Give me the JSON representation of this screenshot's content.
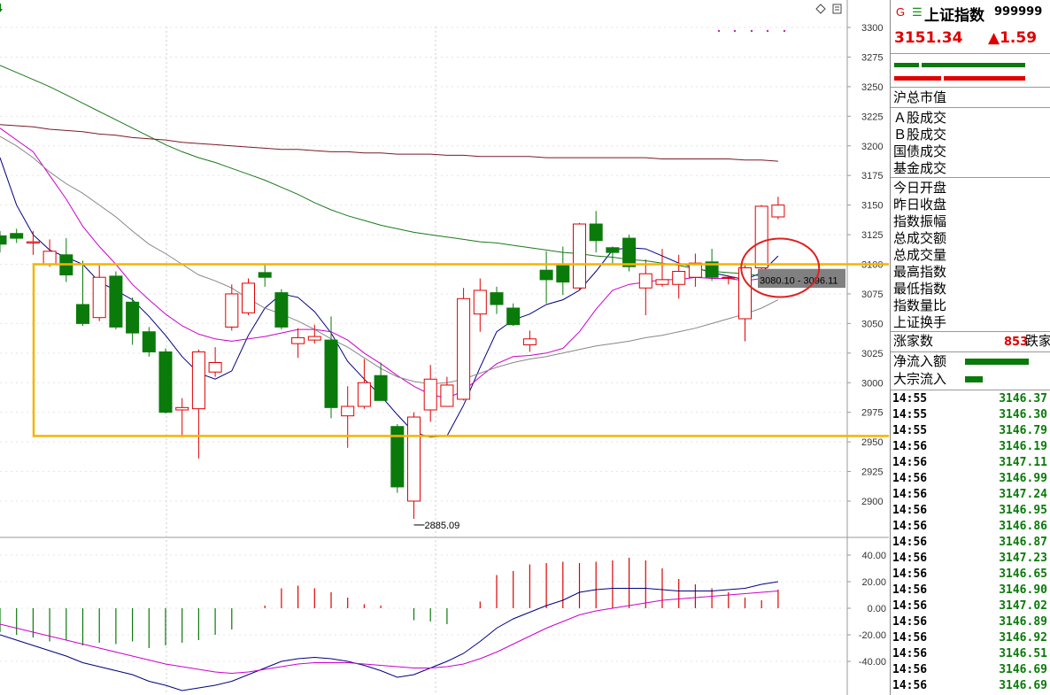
{
  "chart_data": [
    {
      "type": "candlestick",
      "ylim": [
        2880,
        3305
      ],
      "y_ticks": [
        "3300",
        "3275",
        "3250",
        "3225",
        "3200",
        "3175",
        "3150",
        "3125",
        "3100",
        "3075",
        "3050",
        "3025",
        "3000",
        "2975",
        "2950",
        "2925",
        "2900"
      ],
      "candles": [
        {
          "o": 3124,
          "c": 3117,
          "h": 3128,
          "l": 3110
        },
        {
          "o": 3126,
          "c": 3122,
          "h": 3130,
          "l": 3118
        },
        {
          "o": 3118,
          "c": 3119,
          "h": 3128,
          "l": 3108
        },
        {
          "o": 3100,
          "c": 3111,
          "h": 3121,
          "l": 3098
        },
        {
          "o": 3108,
          "c": 3091,
          "h": 3122,
          "l": 3085
        },
        {
          "o": 3066,
          "c": 3050,
          "h": 3103,
          "l": 3048
        },
        {
          "o": 3055,
          "c": 3089,
          "h": 3099,
          "l": 3052
        },
        {
          "o": 3090,
          "c": 3047,
          "h": 3094,
          "l": 3045
        },
        {
          "o": 3068,
          "c": 3042,
          "h": 3072,
          "l": 3032
        },
        {
          "o": 3043,
          "c": 3026,
          "h": 3047,
          "l": 3022
        },
        {
          "o": 3026,
          "c": 2975,
          "h": 3029,
          "l": 2974
        },
        {
          "o": 2977,
          "c": 2979,
          "h": 2987,
          "l": 2955
        },
        {
          "o": 2978,
          "c": 3026,
          "h": 3028,
          "l": 2936
        },
        {
          "o": 3009,
          "c": 3017,
          "h": 3030,
          "l": 3005
        },
        {
          "o": 3047,
          "c": 3075,
          "h": 3083,
          "l": 3044
        },
        {
          "o": 3059,
          "c": 3084,
          "h": 3088,
          "l": 3057
        },
        {
          "o": 3093,
          "c": 3089,
          "h": 3100,
          "l": 3081
        },
        {
          "o": 3076,
          "c": 3047,
          "h": 3079,
          "l": 3045
        },
        {
          "o": 3033,
          "c": 3038,
          "h": 3046,
          "l": 3021
        },
        {
          "o": 3036,
          "c": 3039,
          "h": 3049,
          "l": 3033
        },
        {
          "o": 3036,
          "c": 2979,
          "h": 3056,
          "l": 2970
        },
        {
          "o": 2972,
          "c": 2980,
          "h": 2997,
          "l": 2945
        },
        {
          "o": 2980,
          "c": 3000,
          "h": 3020,
          "l": 2978
        },
        {
          "o": 3006,
          "c": 2985,
          "h": 3017,
          "l": 2985
        },
        {
          "o": 2963,
          "c": 2912,
          "h": 2965,
          "l": 2907
        },
        {
          "o": 2900,
          "c": 2971,
          "h": 2975,
          "l": 2885.09
        },
        {
          "o": 2977,
          "c": 3003,
          "h": 3015,
          "l": 2967
        },
        {
          "o": 2980,
          "c": 2998,
          "h": 3005,
          "l": 2980
        },
        {
          "o": 2986,
          "c": 3071,
          "h": 3080,
          "l": 2985
        },
        {
          "o": 3058,
          "c": 3078,
          "h": 3088,
          "l": 3043
        },
        {
          "o": 3076,
          "c": 3066,
          "h": 3081,
          "l": 3058
        },
        {
          "o": 3063,
          "c": 3049,
          "h": 3067,
          "l": 3048
        },
        {
          "o": 3032,
          "c": 3037,
          "h": 3044,
          "l": 3026
        },
        {
          "o": 3095,
          "c": 3087,
          "h": 3111,
          "l": 3067
        },
        {
          "o": 3100,
          "c": 3085,
          "h": 3115,
          "l": 3074
        },
        {
          "o": 3080,
          "c": 3134,
          "h": 3135,
          "l": 3078
        },
        {
          "o": 3134,
          "c": 3120,
          "h": 3145,
          "l": 3110
        },
        {
          "o": 3114,
          "c": 3110,
          "h": 3115,
          "l": 3100
        },
        {
          "o": 3122,
          "c": 3098,
          "h": 3125,
          "l": 3094
        },
        {
          "o": 3080,
          "c": 3092,
          "h": 3104,
          "l": 3057
        },
        {
          "o": 3083,
          "c": 3087,
          "h": 3113,
          "l": 3081
        },
        {
          "o": 3083,
          "c": 3094,
          "h": 3108,
          "l": 3071
        },
        {
          "o": 3089,
          "c": 3101,
          "h": 3109,
          "l": 3081
        },
        {
          "o": 3102,
          "c": 3089,
          "h": 3113,
          "l": 3086
        },
        {
          "o": 3089,
          "c": 3089,
          "h": 3090,
          "l": 3083
        },
        {
          "o": 3054,
          "c": 3097,
          "h": 3101,
          "l": 3035
        },
        {
          "o": 3097,
          "c": 3149,
          "h": 3150,
          "l": 3096
        },
        {
          "o": 3140,
          "c": 3150,
          "h": 3157,
          "l": 3138
        }
      ],
      "candle_colors": {
        "up": "#e00000",
        "down": "#0a7a0a"
      },
      "moving_averages": [
        {
          "color": "#000080",
          "values": [
            3190,
            3150,
            3125,
            3112,
            3106,
            3100,
            3085,
            3078,
            3070,
            3056,
            3040,
            3022,
            3008,
            3003,
            3010,
            3040,
            3063,
            3075,
            3072,
            3060,
            3042,
            3018,
            3003,
            2989,
            2973,
            2958,
            2954,
            2955,
            2981,
            3013,
            3043,
            3053,
            3058,
            3066,
            3070,
            3078,
            3094,
            3112,
            3114,
            3113,
            3107,
            3101,
            3097,
            3093,
            3090,
            3087,
            3093,
            3107
          ]
        },
        {
          "color": "#cc00cc",
          "values": [
            3215,
            3205,
            3195,
            3175,
            3155,
            3132,
            3115,
            3100,
            3083,
            3070,
            3058,
            3048,
            3041,
            3037,
            3035,
            3037,
            3039,
            3042,
            3045,
            3045,
            3043,
            3036,
            3025,
            3016,
            3006,
            2997,
            2990,
            2987,
            2993,
            3005,
            3016,
            3022,
            3023,
            3025,
            3029,
            3043,
            3062,
            3078,
            3083,
            3085,
            3087,
            3087,
            3089,
            3088,
            3088,
            3086,
            3088,
            3092
          ]
        },
        {
          "color": "#888888",
          "values": [
            3208,
            3200,
            3190,
            3178,
            3168,
            3160,
            3150,
            3140,
            3128,
            3117,
            3109,
            3100,
            3091,
            3086,
            3080,
            3071,
            3063,
            3058,
            3052,
            3045,
            3037,
            3030,
            3021,
            3012,
            3005,
            3001,
            2999,
            3000,
            3003,
            3008,
            3013,
            3017,
            3020,
            3022,
            3025,
            3028,
            3031,
            3033,
            3035,
            3038,
            3040,
            3043,
            3046,
            3050,
            3054,
            3058,
            3063,
            3070
          ]
        },
        {
          "color": "#1a7a1a",
          "values": [
            3268,
            3262,
            3256,
            3250,
            3243,
            3236,
            3229,
            3222,
            3215,
            3208,
            3201,
            3195,
            3190,
            3186,
            3181,
            3176,
            3171,
            3165,
            3159,
            3152,
            3146,
            3141,
            3137,
            3133,
            3130,
            3127,
            3125,
            3123,
            3121,
            3119,
            3118,
            3116,
            3114,
            3112,
            3110,
            3109,
            3107,
            3106,
            3104,
            3103,
            3101,
            3099,
            3096,
            3094,
            3093,
            3092,
            3090,
            3088
          ]
        },
        {
          "color": "#7a1a2a",
          "values": [
            3218,
            3217,
            3216,
            3214,
            3213,
            3212,
            3210,
            3209,
            3207,
            3206,
            3205,
            3203,
            3202,
            3201,
            3200,
            3199,
            3198,
            3197,
            3197,
            3196,
            3195,
            3195,
            3194,
            3194,
            3193,
            3193,
            3193,
            3192,
            3192,
            3191,
            3191,
            3191,
            3191,
            3190,
            3190,
            3190,
            3190,
            3190,
            3190,
            3190,
            3189,
            3189,
            3189,
            3189,
            3189,
            3188,
            3188,
            3187
          ]
        }
      ],
      "annotations": [
        {
          "text": "2885.09",
          "x_index": 25,
          "value": 2885.09
        },
        {
          "text": "3080.10 - 3096.11",
          "value": 3088
        }
      ],
      "range_band": [
        3080.1,
        3096.11
      ],
      "highlight_box": {
        "y_top": 3100,
        "y_bottom": 2955,
        "color": "#f4b400"
      },
      "highlight_circle": {
        "x_index": 46,
        "y_center": 3097,
        "color": "#e02020"
      }
    },
    {
      "type": "bar",
      "ylim": [
        -72,
        50
      ],
      "y_ticks": [
        "40.00",
        "20.00",
        "0.00",
        "-20.00",
        "-40.00"
      ],
      "values": [
        -18,
        -20,
        -22,
        -25,
        -24,
        -28,
        -26,
        -27,
        -25,
        -30,
        -28,
        -26,
        -24,
        -20,
        -16,
        0,
        2,
        15,
        17,
        15,
        12,
        8,
        3,
        2,
        0,
        -9,
        -10,
        -12,
        0,
        5,
        25,
        28,
        33,
        34,
        35,
        34,
        35,
        36,
        38,
        36,
        30,
        22,
        18,
        15,
        12,
        8,
        6,
        14
      ],
      "lines": [
        {
          "color": "#000080",
          "values": [
            -20,
            -24,
            -28,
            -32,
            -36,
            -41,
            -44,
            -47,
            -50,
            -55,
            -58,
            -62,
            -60,
            -58,
            -55,
            -50,
            -45,
            -40,
            -38,
            -37,
            -38,
            -40,
            -43,
            -47,
            -52,
            -50,
            -45,
            -40,
            -34,
            -25,
            -15,
            -8,
            -3,
            2,
            6,
            12,
            14,
            15,
            15,
            15,
            14,
            13,
            13,
            13,
            14,
            15,
            18,
            20
          ]
        },
        {
          "color": "#cc00cc",
          "values": [
            -12,
            -15,
            -18,
            -21,
            -24,
            -27,
            -30,
            -33,
            -36,
            -39,
            -42,
            -44,
            -46,
            -48,
            -49,
            -48,
            -46,
            -44,
            -42,
            -41,
            -41,
            -41,
            -42,
            -43,
            -44,
            -45,
            -45,
            -44,
            -42,
            -38,
            -33,
            -27,
            -21,
            -15,
            -10,
            -5,
            -2,
            0,
            2,
            4,
            6,
            7,
            8,
            9,
            10,
            11,
            12,
            13
          ]
        }
      ]
    }
  ],
  "toolbar": {
    "icons": [
      "diamond-icon",
      "menu-icon"
    ],
    "pin_icon": "down-arrow-icon"
  },
  "quote": {
    "flag_g": "G",
    "menu_glyph": "☰",
    "name": "上证指数",
    "code": "999999",
    "price": "3151.34",
    "change": "▲1.59"
  },
  "labels_group1": [
    "沪总市值"
  ],
  "labels_group2": [
    "Ａ股成交",
    "Ｂ股成交",
    "国债成交",
    "基金成交"
  ],
  "labels_group3": [
    "今日开盘",
    "昨日收盘",
    "指数振幅",
    "总成交额",
    "总成交量",
    "最高指数",
    "最低指数",
    "指数量比",
    "上证换手"
  ],
  "breadth": {
    "up_label": "涨家数",
    "up_count": "853",
    "down_label": "跌家"
  },
  "flows": [
    {
      "label": "净流入额",
      "width": 72
    },
    {
      "label": "大宗流入",
      "width": 20
    }
  ],
  "ticks": [
    {
      "time": "14:55",
      "price": "3146.37"
    },
    {
      "time": "14:55",
      "price": "3146.30"
    },
    {
      "time": "14:55",
      "price": "3146.79"
    },
    {
      "time": "14:56",
      "price": "3146.19"
    },
    {
      "time": "14:56",
      "price": "3147.11"
    },
    {
      "time": "14:56",
      "price": "3146.99"
    },
    {
      "time": "14:56",
      "price": "3147.24"
    },
    {
      "time": "14:56",
      "price": "3146.95"
    },
    {
      "time": "14:56",
      "price": "3146.86"
    },
    {
      "time": "14:56",
      "price": "3146.87"
    },
    {
      "time": "14:56",
      "price": "3147.23"
    },
    {
      "time": "14:56",
      "price": "3146.65"
    },
    {
      "time": "14:56",
      "price": "3146.90"
    },
    {
      "time": "14:56",
      "price": "3147.02"
    },
    {
      "time": "14:56",
      "price": "3146.89"
    },
    {
      "time": "14:56",
      "price": "3146.92"
    },
    {
      "time": "14:56",
      "price": "3146.51"
    },
    {
      "time": "14:56",
      "price": "3146.69"
    },
    {
      "time": "14:56",
      "price": "3146.69"
    }
  ]
}
